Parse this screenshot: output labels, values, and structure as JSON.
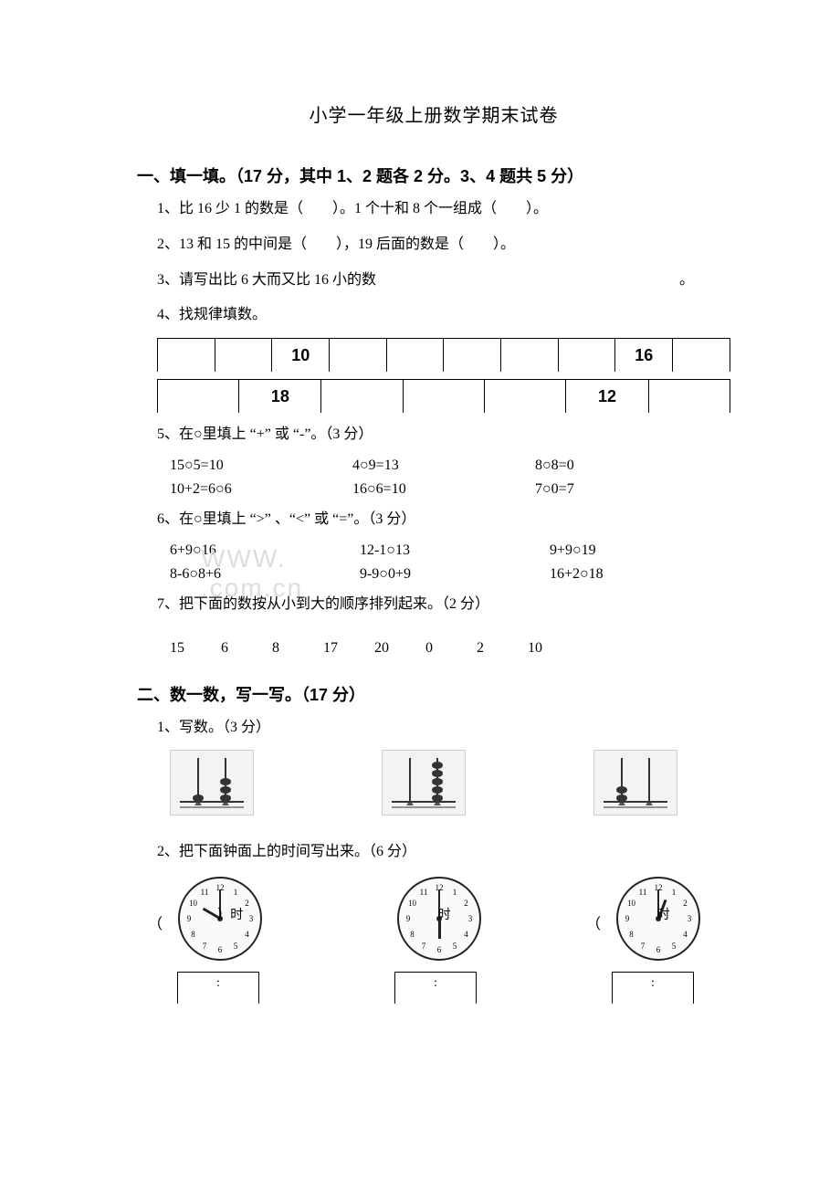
{
  "title": "小学一年级上册数学期末试卷",
  "section1": {
    "heading": "一、填一填。（17 分，其中 1、2 题各 2 分。3、4 题共 5 分）",
    "q1": "1、比 16 少 1 的数是（　　）。1 个十和 8 个一组成（　　）。",
    "q2": "2、13 和 15 的中间是（　　），19 后面的数是（　　）。",
    "q3": "3、请写出比 6 大而又比 16 小的数",
    "q3_end": "。",
    "q4": "4、找规律填数。",
    "line1": [
      "",
      "",
      "10",
      "",
      "",
      "",
      "",
      "",
      "16",
      ""
    ],
    "line2": [
      "",
      "18",
      "",
      "",
      "",
      "12",
      ""
    ],
    "q5": "5、在○里填上 “+” 或 “-”。（3 分）",
    "q5r1": [
      "15○5=10",
      "4○9=13",
      "8○8=0"
    ],
    "q5r2": [
      "10+2=6○6",
      "16○6=10",
      "7○0=7"
    ],
    "q6": "6、在○里填上 “>” 、“<” 或 “=”。（3 分）",
    "q6r1": [
      "6+9○16",
      "12-1○13",
      "9+9○19"
    ],
    "q6r2": [
      "8-6○8+6",
      "9-9○0+9",
      "16+2○18"
    ],
    "q7": "7、把下面的数按从小到大的顺序排列起来。（2 分）",
    "nums": [
      "15",
      "6",
      "8",
      "17",
      "20",
      "0",
      "2",
      "10"
    ]
  },
  "section2": {
    "heading": "二、数一数，写一写。（17 分）",
    "q1": "1、写数。（3 分）",
    "q2": "2、把下面钟面上的时间写出来。（6 分）",
    "abacus": [
      {
        "rods": [
          1,
          3
        ]
      },
      {
        "rods": [
          0,
          5
        ]
      },
      {
        "rods": [
          2,
          0
        ]
      }
    ],
    "clocks": [
      {
        "hour_angle": 300,
        "minute_angle": 0,
        "label": "）时",
        "paren": "（"
      },
      {
        "hour_angle": 180,
        "minute_angle": 0,
        "label": "时",
        "paren": ""
      },
      {
        "hour_angle": 20,
        "minute_angle": 0,
        "label": "时",
        "paren": "（"
      }
    ],
    "timebox": ":",
    "watermark": "WWW.      .com.cn"
  },
  "colors": {
    "text": "#000000",
    "watermark": "#dddddd",
    "bg": "#ffffff"
  }
}
